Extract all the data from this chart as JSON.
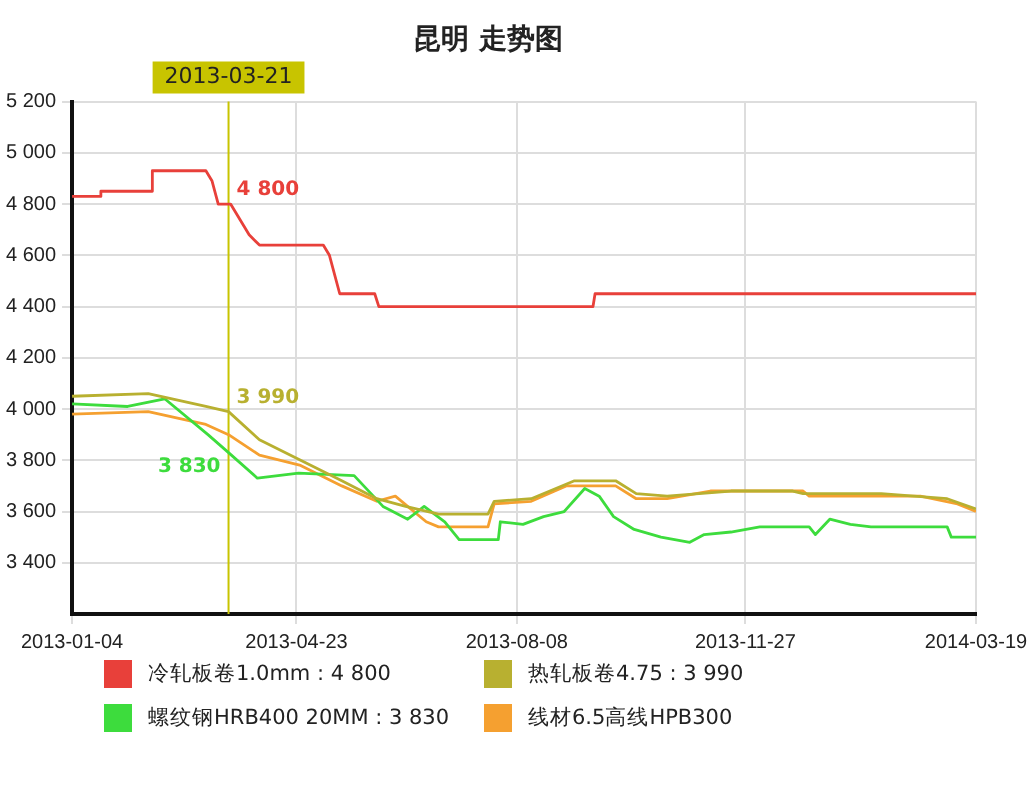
{
  "chart_data": {
    "type": "line",
    "title": "昆明 走势图",
    "xlim": [
      "2013-01-04",
      "2014-03-19"
    ],
    "xticks": [
      "2013-01-04",
      "2013-04-23",
      "2013-08-08",
      "2013-11-27",
      "2014-03-19"
    ],
    "ylim": [
      3200,
      5200
    ],
    "yticks": [
      {
        "value": 3400,
        "label": "3 400"
      },
      {
        "value": 3600,
        "label": "3 600"
      },
      {
        "value": 3800,
        "label": "3 800"
      },
      {
        "value": 4000,
        "label": "4 000"
      },
      {
        "value": 4200,
        "label": "4 200"
      },
      {
        "value": 4400,
        "label": "4 400"
      },
      {
        "value": 4600,
        "label": "4 600"
      },
      {
        "value": 4800,
        "label": "4 800"
      },
      {
        "value": 5000,
        "label": "5 000"
      },
      {
        "value": 5200,
        "label": "5 200"
      }
    ],
    "grid": true,
    "legend": "bottom",
    "marker": "none",
    "line_style": "solid",
    "series": [
      {
        "name": "冷轧板卷1.0mm : 4 800",
        "color": "#e8403a",
        "x": [
          "2013-01-04",
          "2013-01-18",
          "2013-01-18",
          "2013-02-12",
          "2013-02-12",
          "2013-03-10",
          "2013-03-13",
          "2013-03-16",
          "2013-03-22",
          "2013-03-31",
          "2013-04-05",
          "2013-05-06",
          "2013-05-09",
          "2013-05-14",
          "2013-05-31",
          "2013-06-02",
          "2013-09-14",
          "2013-09-15",
          "2014-03-19"
        ],
        "values": [
          4830,
          4830,
          4850,
          4850,
          4930,
          4930,
          4890,
          4800,
          4800,
          4680,
          4640,
          4640,
          4600,
          4450,
          4450,
          4400,
          4400,
          4450,
          4450
        ]
      },
      {
        "name": "热轧板卷4.75 : 3 990",
        "color": "#b8b030",
        "x": [
          "2013-01-04",
          "2013-02-10",
          "2013-03-10",
          "2013-03-21",
          "2013-04-05",
          "2013-04-25",
          "2013-05-15",
          "2013-06-01",
          "2013-06-15",
          "2013-07-01",
          "2013-07-25",
          "2013-07-28",
          "2013-08-15",
          "2013-09-05",
          "2013-09-25",
          "2013-10-05",
          "2013-10-20",
          "2013-11-20",
          "2013-12-20",
          "2013-12-25",
          "2014-02-01",
          "2014-03-05",
          "2014-03-19"
        ],
        "values": [
          4050,
          4060,
          4010,
          3990,
          3880,
          3800,
          3720,
          3650,
          3620,
          3590,
          3590,
          3640,
          3650,
          3720,
          3720,
          3670,
          3660,
          3680,
          3680,
          3670,
          3670,
          3650,
          3610
        ]
      },
      {
        "name": "螺纹钢HRB400 20MM : 3 830",
        "color": "#3ddc3d",
        "x": [
          "2013-01-04",
          "2013-01-31",
          "2013-02-18",
          "2013-03-11",
          "2013-03-21",
          "2013-04-04",
          "2013-04-24",
          "2013-05-21",
          "2013-06-04",
          "2013-06-16",
          "2013-06-24",
          "2013-07-04",
          "2013-07-11",
          "2013-07-30",
          "2013-07-31",
          "2013-08-11",
          "2013-08-21",
          "2013-08-31",
          "2013-09-10",
          "2013-09-17",
          "2013-09-24",
          "2013-10-04",
          "2013-10-17",
          "2013-10-31",
          "2013-11-07",
          "2013-11-20",
          "2013-12-04",
          "2013-12-28",
          "2013-12-31",
          "2014-01-07",
          "2014-01-17",
          "2014-01-27",
          "2014-03-05",
          "2014-03-07",
          "2014-03-19"
        ],
        "values": [
          4020,
          4010,
          4040,
          3900,
          3830,
          3730,
          3750,
          3740,
          3620,
          3570,
          3620,
          3560,
          3490,
          3490,
          3560,
          3550,
          3580,
          3600,
          3690,
          3660,
          3580,
          3530,
          3500,
          3480,
          3510,
          3520,
          3540,
          3540,
          3510,
          3570,
          3550,
          3540,
          3540,
          3500,
          3500
        ]
      },
      {
        "name": "线材6.5高线HPB300",
        "color": "#f5a030",
        "x": [
          "2013-01-04",
          "2013-02-10",
          "2013-03-10",
          "2013-03-21",
          "2013-04-05",
          "2013-04-25",
          "2013-05-15",
          "2013-06-01",
          "2013-06-10",
          "2013-06-25",
          "2013-07-01",
          "2013-07-25",
          "2013-07-28",
          "2013-08-15",
          "2013-09-01",
          "2013-09-25",
          "2013-10-05",
          "2013-10-20",
          "2013-11-10",
          "2013-12-25",
          "2013-12-28",
          "2014-02-20",
          "2014-03-10",
          "2014-03-19"
        ],
        "values": [
          3980,
          3990,
          3940,
          3900,
          3820,
          3780,
          3700,
          3640,
          3660,
          3560,
          3540,
          3540,
          3630,
          3640,
          3700,
          3700,
          3650,
          3650,
          3680,
          3680,
          3660,
          3660,
          3630,
          3600
        ]
      }
    ],
    "ref_lines": [
      {
        "axis": "x",
        "value": "2013-03-21",
        "label": "2013-03-21",
        "color": "#c8c400"
      }
    ],
    "annotations": [
      {
        "text": "4 800",
        "x": "2013-03-21",
        "y": 4800
      },
      {
        "text": "3 990",
        "x": "2013-03-21",
        "y": 3990
      },
      {
        "text": "3 830",
        "x": "2013-03-21",
        "y": 3830
      }
    ]
  }
}
